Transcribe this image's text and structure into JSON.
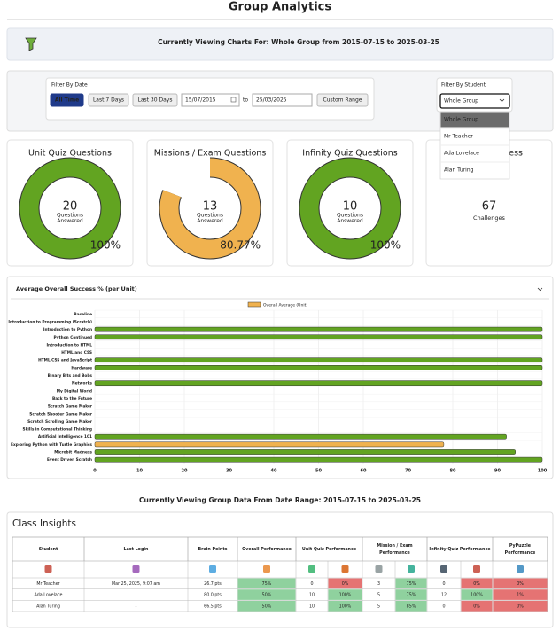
{
  "header": {
    "title": "Group Analytics",
    "banner": "Currently Viewing Charts For: Whole Group from 2015-07-15 to 2025-03-25"
  },
  "filter": {
    "date_label": "Filter By Date",
    "buttons": [
      "All Time",
      "Last 7 Days",
      "Last 30 Days"
    ],
    "from": "15/07/2015",
    "to_label": "to",
    "to": "25/03/2025",
    "custom": "Custom Range",
    "student_label": "Filter By Student",
    "selected": "Whole Group",
    "options": [
      "Whole Group",
      "Mr Teacher",
      "Ada Lovelace",
      "Alan Turing"
    ]
  },
  "cards": [
    {
      "title": "Unit Quiz Questions",
      "count": 20,
      "caption": [
        "Questions",
        "Answered"
      ],
      "percent": 100,
      "percent_label": "100%",
      "color": "#62a421"
    },
    {
      "title": "Missions / Exam Questions",
      "count": 13,
      "caption": [
        "Questions",
        "Answered"
      ],
      "percent": 80.77,
      "percent_label": "80.77%",
      "color": "#f0b24f"
    },
    {
      "title": "Infinity Quiz Questions",
      "count": 10,
      "caption": [
        "Questions",
        "Answered"
      ],
      "percent": 100,
      "percent_label": "100%",
      "color": "#62a421"
    }
  ],
  "pypuzzle_card": {
    "title": "ress",
    "count": 67,
    "caption": "Challenges"
  },
  "chart_data": {
    "type": "bar",
    "orientation": "horizontal",
    "title": "Average Overall Success % (per Unit)",
    "categories": [
      "Baseline",
      "Introduction to Programming (Scratch)",
      "Introduction to Python",
      "Python Continued",
      "Introduction to HTML",
      "HTML and CSS",
      "HTML CSS and JavaScript",
      "Hardware",
      "Binary Bits and Bobs",
      "Networks",
      "My Digital World",
      "Back to the Future",
      "Scratch Game Maker",
      "Scratch Shooter Game Maker",
      "Scratch Scrolling Game Maker",
      "Skills in Computational Thinking",
      "Artificial Intelligence 101",
      "Exploring Python with Turtle Graphics",
      "Microbit Madness",
      "Event Driven Scratch"
    ],
    "series": [
      {
        "name": "Overall Average (Unit)",
        "color": "#f0b24f",
        "values": [
          null,
          null,
          100,
          100,
          null,
          null,
          100,
          100,
          null,
          100,
          null,
          null,
          null,
          null,
          null,
          null,
          92,
          78,
          94,
          100
        ]
      }
    ],
    "bar_colors": [
      null,
      null,
      "#62a421",
      "#62a421",
      null,
      null,
      "#62a421",
      "#62a421",
      null,
      "#62a421",
      null,
      null,
      null,
      null,
      null,
      null,
      "#62a421",
      "#f0b24f",
      "#62a421",
      "#62a421"
    ],
    "xlim": [
      0,
      100
    ],
    "xticks": [
      0,
      10,
      20,
      30,
      40,
      50,
      60,
      70,
      80,
      90,
      100
    ],
    "grid": true
  },
  "range_note": "Currently Viewing Group Data From Date Range: 2015-07-15 to 2025-03-25",
  "table": {
    "title": "Class Insights",
    "headers": [
      [
        "Student"
      ],
      [
        "Last Login"
      ],
      [
        "Brain Points"
      ],
      [
        "Overall Performance"
      ],
      [
        "Unit Quiz Performance"
      ],
      [
        "Mission / Exam",
        "Performance"
      ],
      [
        "Infinity Quiz Performance"
      ],
      [
        "PyPuzzle",
        "Performance"
      ]
    ],
    "colors": {
      "good": "#8fd19e",
      "bad": "#e57373"
    },
    "rows": [
      {
        "cells": [
          "Mr Teacher",
          "Mar 25, 2025, 9:07 am",
          "26.7 pts",
          "75%",
          "0",
          "0%",
          "3",
          "75%",
          "0",
          "0%",
          "0%"
        ],
        "shades": [
          null,
          null,
          null,
          "good",
          null,
          "bad",
          null,
          "good",
          null,
          "bad",
          "bad"
        ]
      },
      {
        "cells": [
          "Ada Lovelace",
          null,
          "80.0 pts",
          "50%",
          "10",
          "100%",
          "5",
          "75%",
          "12",
          "100%",
          "1%"
        ],
        "shades": [
          null,
          null,
          null,
          "good",
          null,
          "good",
          null,
          "good",
          null,
          "good",
          "bad"
        ]
      },
      {
        "cells": [
          "Alan Turing",
          "-",
          "66.5 pts",
          "50%",
          "10",
          "100%",
          "5",
          "85%",
          "0",
          "0%",
          "0%"
        ],
        "shades": [
          null,
          null,
          null,
          "good",
          null,
          "good",
          null,
          "good",
          null,
          "bad",
          "bad"
        ]
      }
    ]
  }
}
